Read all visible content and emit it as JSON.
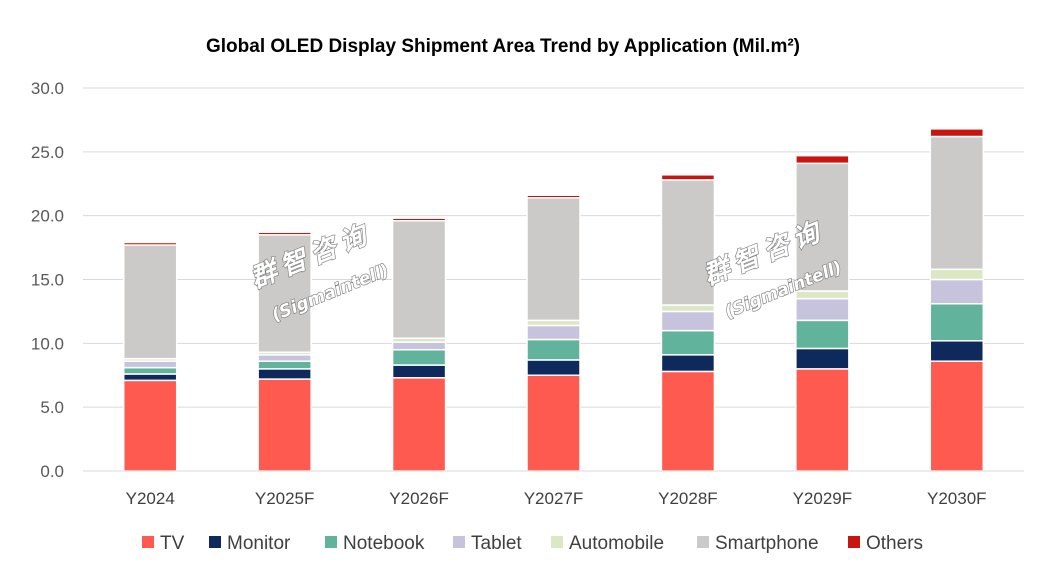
{
  "chart_data": {
    "type": "bar",
    "stacked": true,
    "title": "Global OLED Display Shipment Area Trend by Application (Mil.m²)",
    "xlabel": "",
    "ylabel": "",
    "ylim": [
      0,
      30
    ],
    "yticks": [
      "0.0",
      "5.0",
      "10.0",
      "15.0",
      "20.0",
      "25.0",
      "30.0"
    ],
    "grid": true,
    "legend_position": "bottom",
    "categories": [
      "Y2024",
      "Y2025F",
      "Y2026F",
      "Y2027F",
      "Y2028F",
      "Y2029F",
      "Y2030F"
    ],
    "series": [
      {
        "name": "TV",
        "color": "#ff5a50",
        "values": [
          7.1,
          7.2,
          7.3,
          7.5,
          7.8,
          8.0,
          8.6
        ]
      },
      {
        "name": "Monitor",
        "color": "#0e2a5c",
        "values": [
          0.5,
          0.8,
          1.0,
          1.2,
          1.3,
          1.6,
          1.6
        ]
      },
      {
        "name": "Notebook",
        "color": "#62b39b",
        "values": [
          0.5,
          0.6,
          1.2,
          1.6,
          1.9,
          2.2,
          2.9
        ]
      },
      {
        "name": "Tablet",
        "color": "#c7c3dd",
        "values": [
          0.5,
          0.5,
          0.6,
          1.1,
          1.5,
          1.7,
          1.9
        ]
      },
      {
        "name": "Automobile",
        "color": "#dce8c4",
        "values": [
          0.2,
          0.2,
          0.3,
          0.4,
          0.5,
          0.6,
          0.8
        ]
      },
      {
        "name": "Smartphone",
        "color": "#cbcac8",
        "values": [
          8.9,
          9.2,
          9.2,
          9.6,
          9.8,
          10.0,
          10.4
        ]
      },
      {
        "name": "Others",
        "color": "#c8150f",
        "values": [
          0.2,
          0.2,
          0.2,
          0.2,
          0.4,
          0.6,
          0.6
        ]
      }
    ],
    "watermark": {
      "text_cn": "群智咨询",
      "text_en": "(Sigmaintell)"
    }
  }
}
